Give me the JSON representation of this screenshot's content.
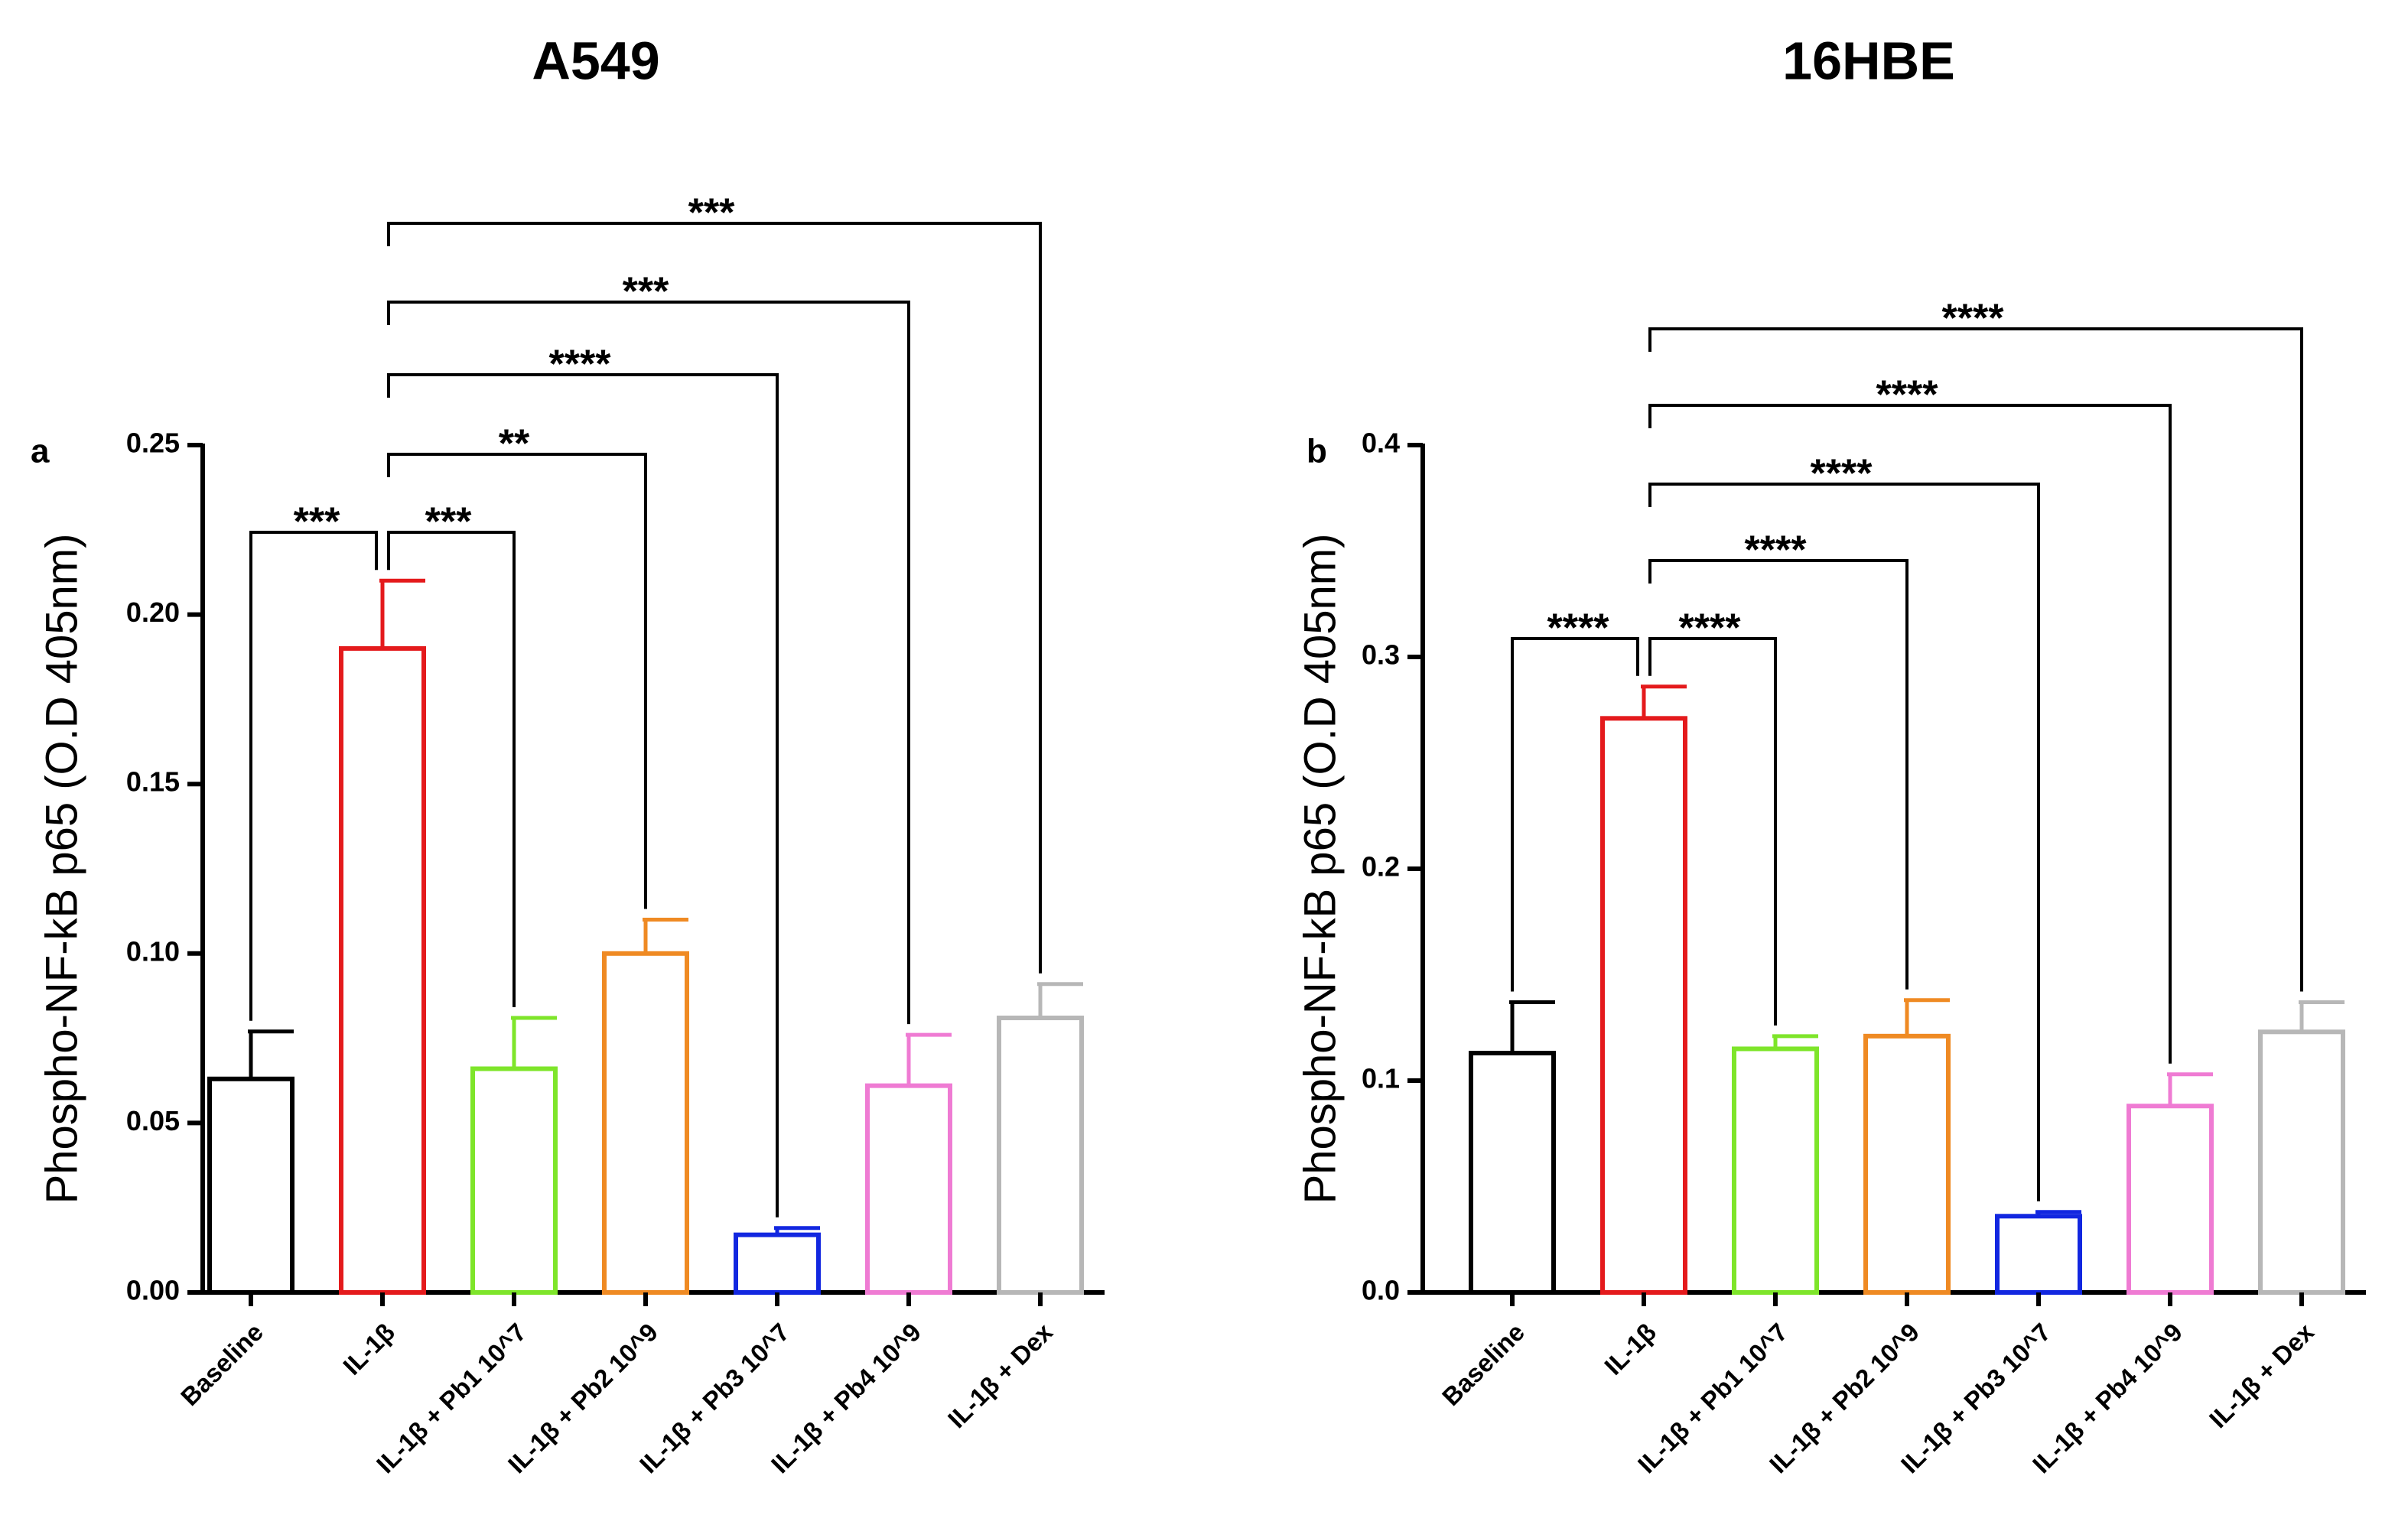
{
  "chart_data": [
    {
      "type": "bar",
      "panel_label": "a",
      "title": "A549",
      "ylabel": "Phospho-NF-kB p65 (O.D 405nm)",
      "xlabel": "",
      "ylim": [
        0,
        0.25
      ],
      "yticks": [
        "0.00",
        "0.05",
        "0.10",
        "0.15",
        "0.20",
        "0.25"
      ],
      "categories": [
        "Baseline",
        "IL-1β",
        "IL-1β + Pb1 10^7",
        "IL-1β + Pb2 10^9",
        "IL-1β + Pb3 10^7",
        "IL-1β + Pb4 10^9",
        "IL-1β + Dex"
      ],
      "values": [
        0.063,
        0.19,
        0.066,
        0.1,
        0.017,
        0.061,
        0.081
      ],
      "errors": [
        0.014,
        0.02,
        0.015,
        0.01,
        0.002,
        0.015,
        0.01
      ],
      "colors": [
        "#000000",
        "#e41a1c",
        "#7ee52a",
        "#ef8a23",
        "#1227e0",
        "#ef7bd3",
        "#b7b7b7"
      ],
      "comparisons": [
        {
          "from": 1,
          "to": 0,
          "label": "***"
        },
        {
          "from": 1,
          "to": 2,
          "label": "***"
        },
        {
          "from": 1,
          "to": 3,
          "label": "**"
        },
        {
          "from": 1,
          "to": 4,
          "label": "****"
        },
        {
          "from": 1,
          "to": 5,
          "label": "***"
        },
        {
          "from": 1,
          "to": 6,
          "label": "***"
        }
      ]
    },
    {
      "type": "bar",
      "panel_label": "b",
      "title": "16HBE",
      "ylabel": "Phospho-NF-kB p65 (O.D 405nm)",
      "xlabel": "",
      "ylim": [
        0,
        0.4
      ],
      "yticks": [
        "0.0",
        "0.1",
        "0.2",
        "0.3",
        "0.4"
      ],
      "categories": [
        "Baseline",
        "IL-1β",
        "IL-1β + Pb1 10^7",
        "IL-1β + Pb2 10^9",
        "IL-1β + Pb3 10^7",
        "IL-1β + Pb4 10^9",
        "IL-1β + Dex"
      ],
      "values": [
        0.113,
        0.271,
        0.115,
        0.121,
        0.036,
        0.088,
        0.123
      ],
      "errors": [
        0.024,
        0.015,
        0.006,
        0.017,
        0.002,
        0.015,
        0.014
      ],
      "colors": [
        "#000000",
        "#e41a1c",
        "#7ee52a",
        "#ef8a23",
        "#1227e0",
        "#ef7bd3",
        "#b7b7b7"
      ],
      "comparisons": [
        {
          "from": 1,
          "to": 0,
          "label": "****"
        },
        {
          "from": 1,
          "to": 2,
          "label": "****"
        },
        {
          "from": 1,
          "to": 3,
          "label": "****"
        },
        {
          "from": 1,
          "to": 4,
          "label": "****"
        },
        {
          "from": 1,
          "to": 5,
          "label": "****"
        },
        {
          "from": 1,
          "to": 6,
          "label": "****"
        }
      ]
    }
  ]
}
